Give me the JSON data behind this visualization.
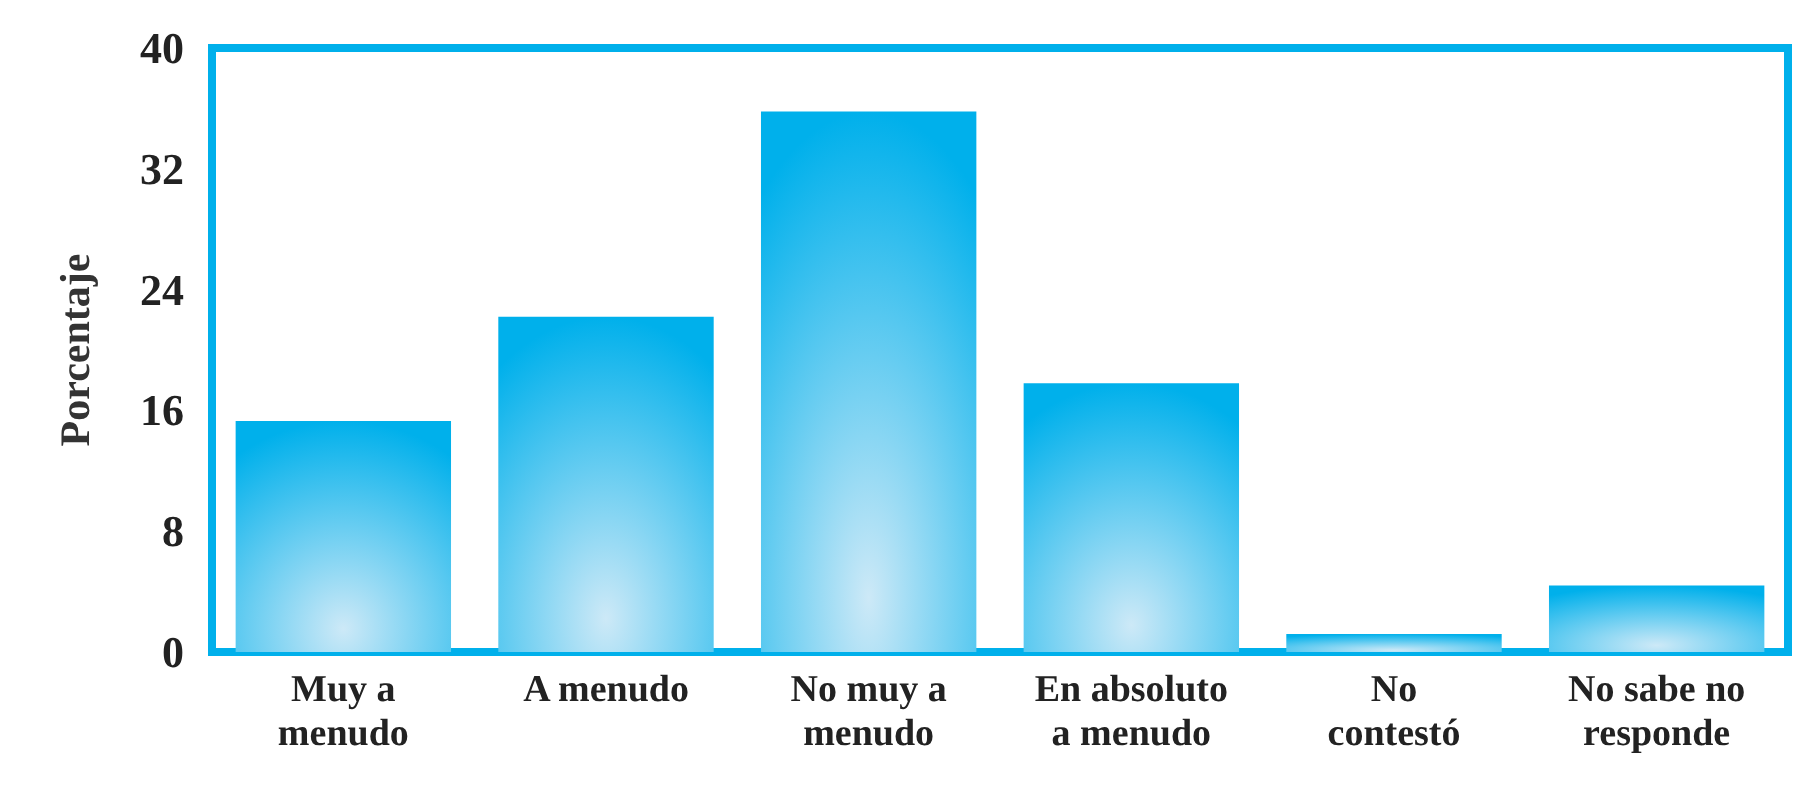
{
  "chart_data": {
    "type": "bar",
    "ylabel": "Porcentaje",
    "categories": [
      "Muy a\nmenudo",
      "A menudo",
      "No muy a\nmenudo",
      "En absoluto\na menudo",
      "No\ncontestó",
      "No sabe no\nresponde"
    ],
    "values": [
      15.3,
      22.2,
      35.8,
      17.8,
      1.2,
      4.4
    ],
    "color": "#00b0eb",
    "ylim": [
      0,
      40
    ],
    "yticks": [
      0,
      8,
      16,
      24,
      32,
      40
    ],
    "grid": false
  }
}
